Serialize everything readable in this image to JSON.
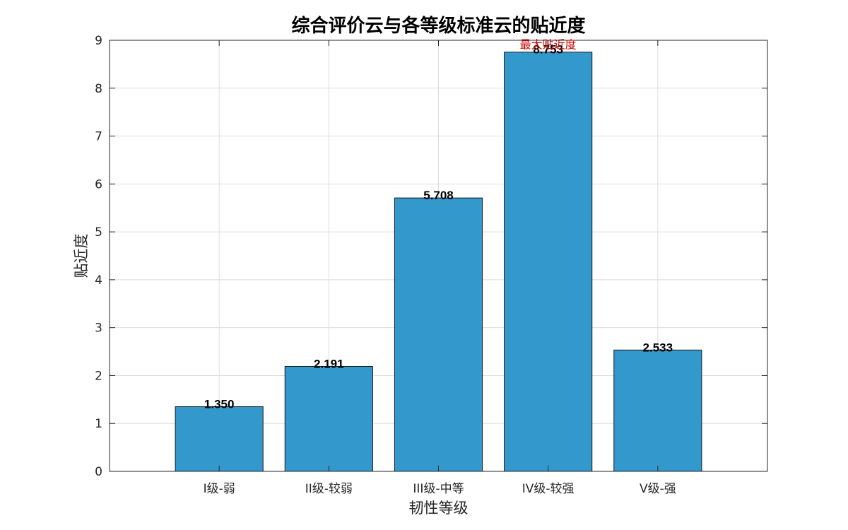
{
  "chart_data": {
    "type": "bar",
    "title": "综合评价云与各等级标准云的贴近度",
    "xlabel": "韧性等级",
    "ylabel": "贴近度",
    "categories": [
      "I级-弱",
      "II级-较弱",
      "III级-中等",
      "IV级-较强",
      "V级-强"
    ],
    "values": [
      1.35,
      2.191,
      5.708,
      8.753,
      2.533
    ],
    "value_labels": [
      "1.350",
      "2.191",
      "5.708",
      "8.753",
      "2.533"
    ],
    "ylim": [
      0,
      9
    ],
    "yticks": [
      0,
      1,
      2,
      3,
      4,
      5,
      6,
      7,
      8,
      9
    ],
    "xlim": [
      0,
      6
    ],
    "grid": true,
    "annotation": {
      "text": "最大贴近度",
      "category_index": 3,
      "color": "#cc0000"
    },
    "bar_color": "#3399cc"
  }
}
